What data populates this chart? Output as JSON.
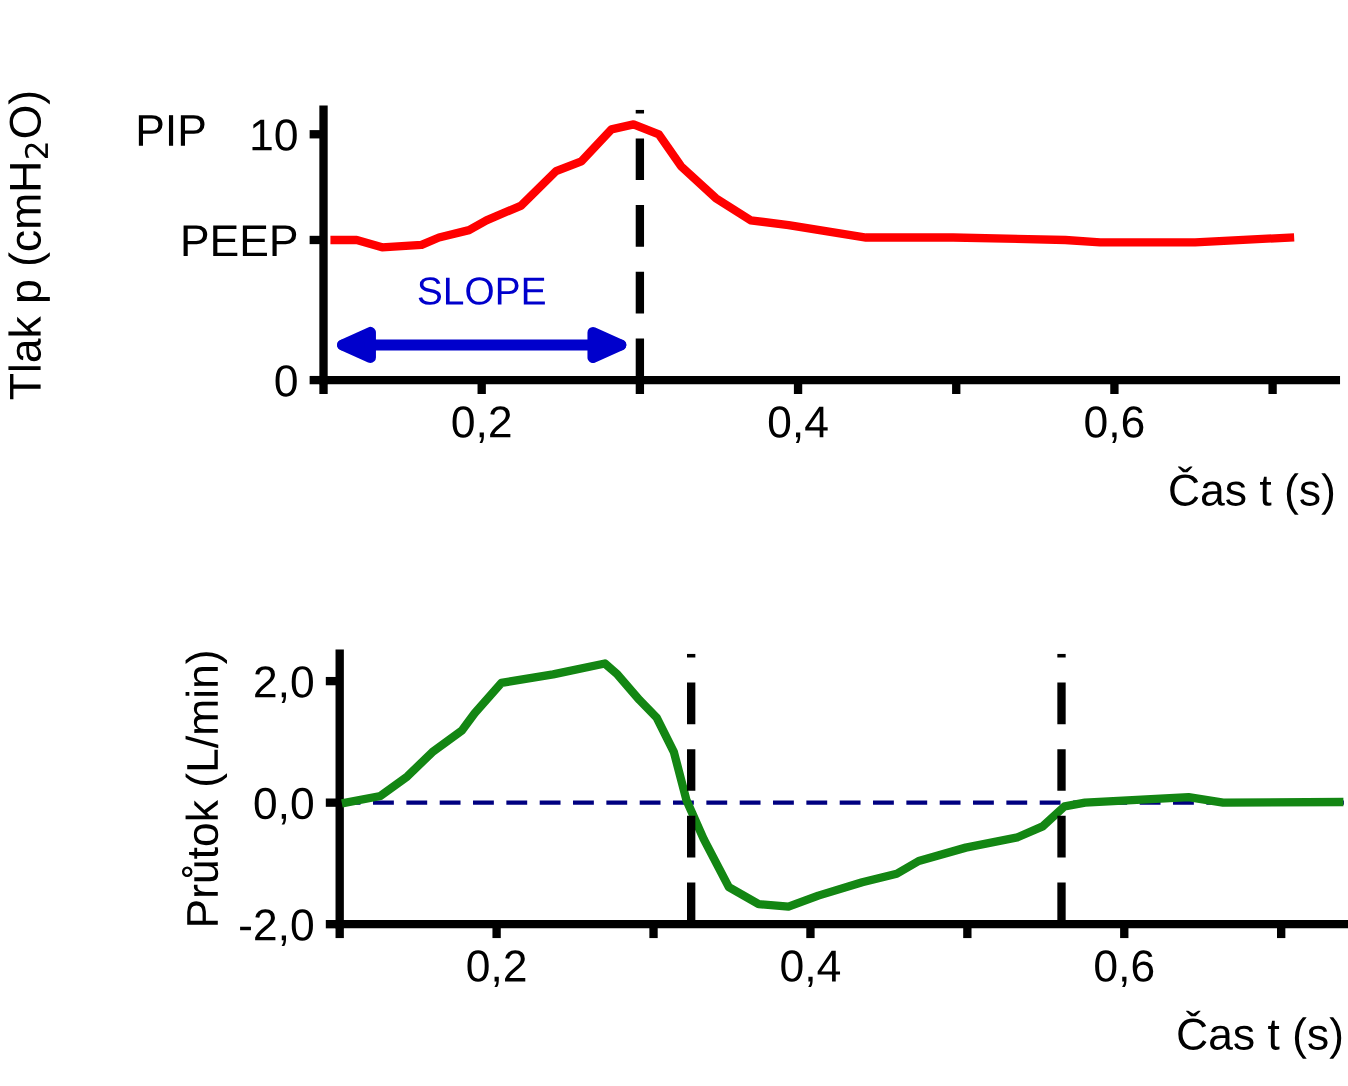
{
  "chart_data": [
    {
      "type": "line",
      "ylabel": "Tlak p (cmH$_{2}$O)",
      "xlabel": "Čas t (s)",
      "x": [
        0.107,
        0.121,
        0.137,
        0.162,
        0.173,
        0.192,
        0.203,
        0.225,
        0.247,
        0.263,
        0.282,
        0.296,
        0.312,
        0.326,
        0.348,
        0.37,
        0.394,
        0.443,
        0.498,
        0.569,
        0.591,
        0.651,
        0.711
      ],
      "series": [
        {
          "color": "#ff0000",
          "values": [
            5.7,
            5.7,
            5.4,
            5.5,
            5.8,
            6.1,
            6.5,
            7.1,
            8.5,
            8.9,
            10.2,
            10.4,
            10.0,
            8.7,
            7.4,
            6.5,
            6.3,
            5.8,
            5.8,
            5.7,
            5.6,
            5.6,
            5.8
          ]
        }
      ],
      "xlim": [
        0.1,
        0.74
      ],
      "xticks": [
        {
          "value": 0.1,
          "label": null
        },
        {
          "value": 0.2,
          "label": "0,2"
        },
        {
          "value": 0.3,
          "label": null
        },
        {
          "value": 0.4,
          "label": "0,4"
        },
        {
          "value": 0.5,
          "label": null
        },
        {
          "value": 0.6,
          "label": "0,6"
        },
        {
          "value": 0.7,
          "label": null
        }
      ],
      "ylim": [
        0,
        11
      ],
      "yticks": [
        0,
        {
          "value": 5.7,
          "label": "PEEP"
        },
        10
      ],
      "annotations": [
        "PIP",
        "SLOPE"
      ],
      "ref_lines": [
        {
          "axis": "x",
          "value": 0.3,
          "color": "#000000",
          "line_style": "dashed"
        }
      ],
      "grid": false,
      "legend": false,
      "marker": "none",
      "line_style": "solid"
    },
    {
      "type": "line",
      "ylabel": "Průtok (L/min)",
      "xlabel": "Čas t (s)",
      "x": [
        0.104,
        0.126,
        0.143,
        0.159,
        0.178,
        0.186,
        0.203,
        0.236,
        0.269,
        0.277,
        0.291,
        0.302,
        0.313,
        0.321,
        0.332,
        0.348,
        0.367,
        0.386,
        0.405,
        0.433,
        0.455,
        0.469,
        0.499,
        0.532,
        0.548,
        0.562,
        0.575,
        0.641,
        0.663,
        0.737
      ],
      "series": [
        {
          "color": "#138613",
          "values": [
            0,
            0.11,
            0.43,
            0.83,
            1.19,
            1.47,
            1.97,
            2.11,
            2.29,
            2.11,
            1.69,
            1.4,
            0.83,
            0.04,
            -0.6,
            -1.39,
            -1.67,
            -1.71,
            -1.53,
            -1.31,
            -1.17,
            -0.96,
            -0.74,
            -0.57,
            -0.39,
            -0.06,
            0,
            0.09,
            0,
            0.01
          ]
        }
      ],
      "xlim": [
        0.1,
        0.74
      ],
      "xticks": [
        {
          "value": 0.1,
          "label": null
        },
        {
          "value": 0.2,
          "label": "0,2"
        },
        {
          "value": 0.3,
          "label": null
        },
        {
          "value": 0.4,
          "label": "0,4"
        },
        {
          "value": 0.5,
          "label": null
        },
        {
          "value": 0.6,
          "label": "0,6"
        },
        {
          "value": 0.7,
          "label": null
        }
      ],
      "ylim": [
        -2.0,
        2.45
      ],
      "yticks": [
        {
          "value": -2.0,
          "label": "-2,0"
        },
        {
          "value": 0.0,
          "label": "0,0"
        },
        {
          "value": 2.0,
          "label": "2,0"
        }
      ],
      "ref_lines": [
        {
          "axis": "y",
          "value": 0,
          "color": "#000080",
          "line_style": "dashed"
        },
        {
          "axis": "x",
          "value": 0.324,
          "color": "#000000",
          "line_style": "dashed"
        },
        {
          "axis": "x",
          "value": 0.56,
          "color": "#000000",
          "line_style": "dashed"
        }
      ],
      "grid": false,
      "legend": false,
      "marker": "none",
      "line_style": "solid"
    }
  ]
}
